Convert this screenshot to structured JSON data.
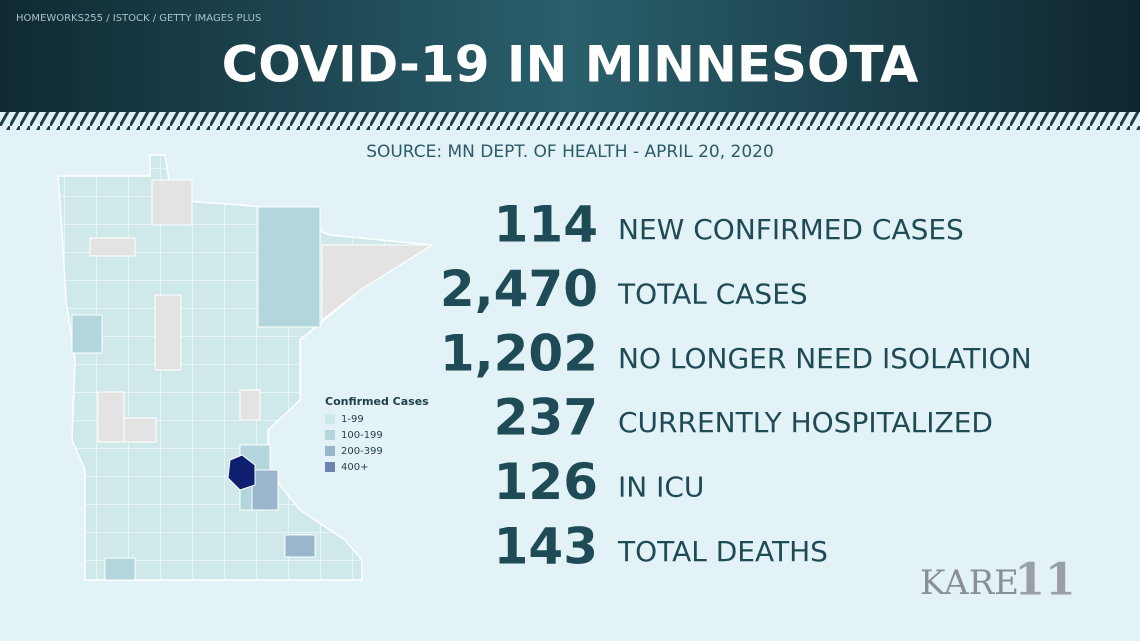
{
  "header": {
    "credit": "HOMEWORKS255 / ISTOCK / GETTY IMAGES PLUS",
    "title": "COVID-19 IN MINNESOTA"
  },
  "source": "SOURCE: MN DEPT. OF HEALTH - APRIL 20, 2020",
  "stats": [
    {
      "number": "114",
      "label": "NEW CONFIRMED CASES"
    },
    {
      "number": "2,470",
      "label": "TOTAL CASES"
    },
    {
      "number": "1,202",
      "label": "NO LONGER NEED ISOLATION"
    },
    {
      "number": "237",
      "label": "CURRENTLY HOSPITALIZED"
    },
    {
      "number": "126",
      "label": "IN ICU"
    },
    {
      "number": "143",
      "label": "TOTAL DEATHS"
    }
  ],
  "legend": {
    "title": "Confirmed Cases",
    "items": [
      {
        "label": "1-99",
        "color": "#cfe9ea"
      },
      {
        "label": "100-199",
        "color": "#b3d5dc"
      },
      {
        "label": "200-399",
        "color": "#9ab6cc"
      },
      {
        "label": "400+",
        "color": "#6f82ad"
      }
    ]
  },
  "logo": {
    "text": "KARE",
    "number": "11"
  }
}
